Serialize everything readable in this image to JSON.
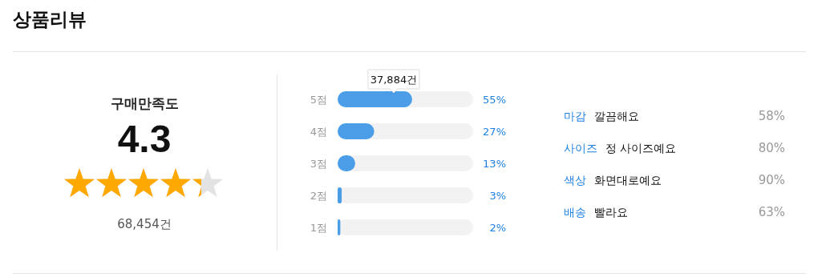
{
  "chart_data": [
    {
      "type": "other",
      "title": "상품리뷰",
      "subtitle": "구매만족도",
      "annotations": [
        "4.3",
        "68,454건"
      ],
      "color": "#ffa800"
    },
    {
      "type": "bar",
      "orientation": "horizontal",
      "categories": [
        "5점",
        "4점",
        "3점",
        "2점",
        "1점"
      ],
      "values": [
        55,
        27,
        13,
        3,
        2
      ],
      "value_labels": [
        "55%",
        "27%",
        "13%",
        "3%",
        "2%"
      ],
      "color": "#4a9de6",
      "xlim": [
        0,
        100
      ],
      "tick_labels": "y",
      "annotations": [
        {
          "text": "37,884건",
          "x": 55,
          "y": "5점"
        }
      ]
    },
    {
      "type": "other",
      "categories": [
        "마감",
        "사이즈",
        "색상",
        "배송"
      ],
      "annotations": [
        "깔끔해요",
        "정 사이즈예요",
        "화면대로예요",
        "빨라요"
      ],
      "value_labels": [
        "58%",
        "80%",
        "90%",
        "63%"
      ]
    }
  ]
}
